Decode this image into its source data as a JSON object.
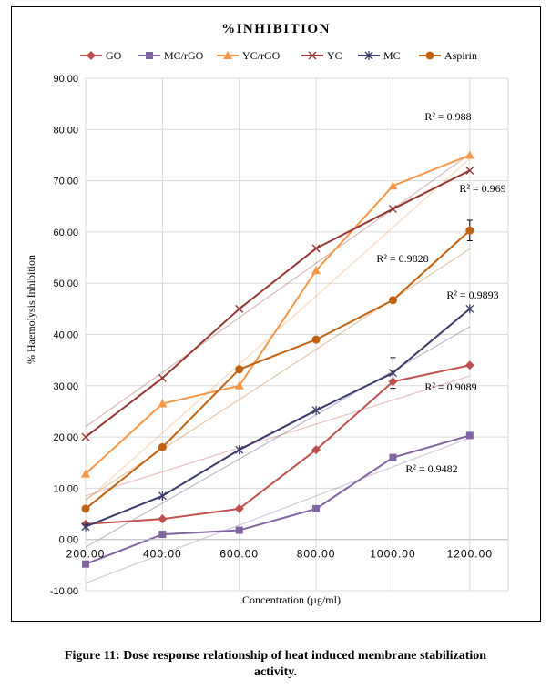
{
  "chart_data": {
    "type": "line",
    "title": "%INHIBITION",
    "xlabel": "Concentration (µg/ml)",
    "ylabel": "% Haemolysis Inhibition",
    "ylim": [
      -10,
      90
    ],
    "yticks": [
      -10,
      0,
      10,
      20,
      30,
      40,
      50,
      60,
      70,
      80,
      90
    ],
    "ytick_labels": [
      "-10.00",
      "0.00",
      "10.00",
      "20.00",
      "30.00",
      "40.00",
      "50.00",
      "60.00",
      "70.00",
      "80.00",
      "90.00"
    ],
    "x": [
      200,
      400,
      600,
      800,
      1000,
      1200
    ],
    "xtick_labels": [
      "200.00",
      "400.00",
      "600.00",
      "800.00",
      "1000.00",
      "1200.00"
    ],
    "grid": true,
    "legend_position": "top",
    "series": [
      {
        "name": "GO",
        "color": "#c0504d",
        "marker": "diamond",
        "values": [
          3.0,
          4.0,
          6.0,
          17.5,
          30.8,
          34.0
        ],
        "trend": [
          8.5,
          13.2,
          17.9,
          22.5,
          27.2,
          31.9
        ],
        "r2": "R² = 0.9089"
      },
      {
        "name": "MC/rGO",
        "color": "#8064a2",
        "marker": "square",
        "values": [
          -4.8,
          1.0,
          1.8,
          6.0,
          16.0,
          20.3
        ],
        "trend": [
          -8.5,
          -2.8,
          2.8,
          8.5,
          14.2,
          19.8
        ],
        "r2": "R² = 0.9482"
      },
      {
        "name": "YC/rGO",
        "color": "#f79646",
        "marker": "triangle",
        "values": [
          12.8,
          26.5,
          30.0,
          52.5,
          69.0,
          75.0
        ],
        "trend": [
          7.5,
          20.8,
          34.2,
          47.5,
          60.9,
          74.3
        ],
        "r2": "R² = 0.969"
      },
      {
        "name": "YC",
        "color": "#943634",
        "marker": "x",
        "values": [
          20.0,
          31.5,
          45.0,
          56.8,
          64.5,
          72.0
        ],
        "trend": [
          22.0,
          32.6,
          43.3,
          53.9,
          64.5,
          75.2
        ],
        "r2": "R² = 0.988"
      },
      {
        "name": "MC",
        "color": "#3b3b6b",
        "marker": "star",
        "values": [
          2.5,
          8.5,
          17.5,
          25.2,
          32.5,
          45.0
        ],
        "trend": [
          -1.5,
          7.1,
          15.7,
          24.3,
          32.9,
          41.5
        ],
        "r2": "R² = 0.9893"
      },
      {
        "name": "Aspirin",
        "color": "#c0620f",
        "marker": "circle",
        "values": [
          6.0,
          18.0,
          33.2,
          39.0,
          46.7,
          60.3
        ],
        "trend": [
          7.8,
          17.6,
          27.3,
          37.1,
          46.9,
          56.7
        ],
        "r2": "R² = 0.9828",
        "error_bar": {
          "x": 1200,
          "low": 58.3,
          "high": 62.3
        }
      }
    ]
  },
  "caption": {
    "line1": "Figure 11: Dose response relationship of heat induced membrane stabilization",
    "line2": "activity."
  }
}
